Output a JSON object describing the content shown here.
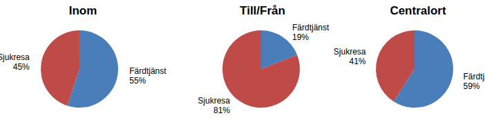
{
  "chart_data": [
    {
      "type": "pie",
      "title": "Inom",
      "categories": [
        "Färdtjänst",
        "Sjukresa"
      ],
      "values": [
        55,
        45
      ],
      "value_labels": [
        "55%",
        "45%"
      ],
      "colors": [
        "#4a7ebb",
        "#be4b48"
      ],
      "data_labels": true
    },
    {
      "type": "pie",
      "title": "Till/Från",
      "categories": [
        "Färdtjänst",
        "Sjukresa"
      ],
      "values": [
        19,
        81
      ],
      "value_labels": [
        "19%",
        "81%"
      ],
      "colors": [
        "#4a7ebb",
        "#be4b48"
      ],
      "data_labels": true
    },
    {
      "type": "pie",
      "title": "Centralort",
      "categories": [
        "Färdtjänst",
        "Sjukresa"
      ],
      "values": [
        59,
        41
      ],
      "value_labels": [
        "59%",
        "41%"
      ],
      "colors": [
        "#4a7ebb",
        "#be4b48"
      ],
      "data_labels": true
    }
  ]
}
